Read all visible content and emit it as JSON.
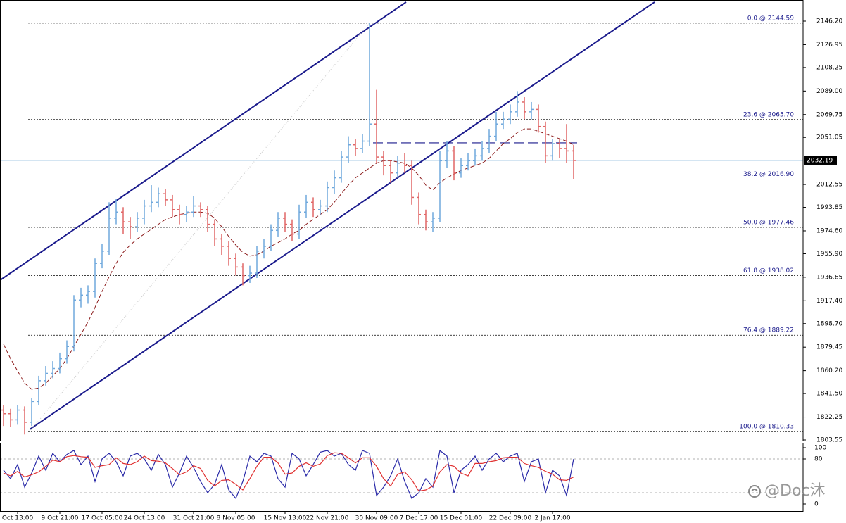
{
  "chart_data": [
    {
      "type": "ohlc",
      "categories": [
        null,
        null,
        "Oct 13:00",
        null,
        null,
        null,
        null,
        null,
        "9 Oct 21:00",
        null,
        null,
        null,
        null,
        null,
        "17 Oct 05:00",
        null,
        null,
        null,
        null,
        null,
        "24 Oct 13:00",
        null,
        null,
        null,
        null,
        null,
        null,
        "31 Oct 21:00",
        null,
        null,
        null,
        null,
        null,
        "8 Nov 05:00",
        null,
        null,
        null,
        null,
        null,
        null,
        "15 Nov 13:00",
        null,
        null,
        null,
        null,
        null,
        "22 Nov 21:00",
        null,
        null,
        null,
        null,
        null,
        null,
        "30 Nov 09:00",
        null,
        null,
        null,
        null,
        null,
        "7 Dec 17:00",
        null,
        null,
        null,
        null,
        null,
        "15 Dec 01:00",
        null,
        null,
        null,
        null,
        null,
        null,
        "22 Dec 09:00",
        null,
        null,
        null,
        null,
        null,
        "2 Jan 17:00",
        null,
        null,
        null
      ],
      "open": [
        1828,
        1825,
        1820,
        1828,
        1818,
        1835,
        1852,
        1858,
        1862,
        1870,
        1880,
        1918,
        1922,
        1925,
        1948,
        1958,
        1985,
        1990,
        1982,
        1978,
        1985,
        1995,
        1998,
        2005,
        2000,
        1992,
        1988,
        1990,
        1995,
        1992,
        1980,
        1968,
        1962,
        1952,
        1945,
        1938,
        1940,
        1958,
        1962,
        1975,
        1985,
        1980,
        1972,
        1990,
        1998,
        1992,
        1995,
        2010,
        2018,
        2035,
        2045,
        2042,
        2048,
        2062,
        2035,
        2028,
        2022,
        2030,
        2028,
        2002,
        1988,
        1982,
        1985,
        2032,
        2040,
        2022,
        2028,
        2032,
        2036,
        2042,
        2052,
        2062,
        2066,
        2072,
        2080,
        2072,
        2074,
        2060,
        2036,
        2046,
        2042,
        2040
      ],
      "high": [
        1832,
        1829,
        1832,
        1831,
        1838,
        1856,
        1864,
        1868,
        1875,
        1885,
        1922,
        1928,
        1930,
        1952,
        1964,
        1998,
        2001,
        1994,
        1986,
        1990,
        2000,
        2012,
        2010,
        2009,
        2004,
        1996,
        1995,
        2003,
        1998,
        1995,
        1984,
        1972,
        1966,
        1956,
        1948,
        1946,
        1962,
        1968,
        1980,
        1990,
        1990,
        1984,
        1996,
        2004,
        2002,
        2000,
        2015,
        2024,
        2040,
        2052,
        2050,
        2054,
        2144.59,
        2090,
        2040,
        2032,
        2036,
        2038,
        2032,
        2006,
        1992,
        1990,
        2040,
        2048,
        2044,
        2034,
        2038,
        2042,
        2048,
        2058,
        2072,
        2072,
        2078,
        2089,
        2084,
        2080,
        2078,
        2064,
        2050,
        2050,
        2062,
        2045
      ],
      "low": [
        1815,
        1814,
        1816,
        1808,
        1815,
        1832,
        1848,
        1854,
        1858,
        1866,
        1876,
        1912,
        1915,
        1920,
        1944,
        1955,
        1980,
        1972,
        1968,
        1974,
        1980,
        1990,
        1994,
        1995,
        1986,
        1980,
        1982,
        1986,
        1986,
        1974,
        1962,
        1955,
        1946,
        1938,
        1930,
        1932,
        1936,
        1952,
        1958,
        1970,
        1974,
        1966,
        1968,
        1985,
        1986,
        1988,
        1990,
        2005,
        2014,
        2030,
        2036,
        2038,
        2044,
        2030,
        2020,
        2014,
        2018,
        2022,
        1996,
        1980,
        1975,
        1974,
        1982,
        2026,
        2016,
        2018,
        2024,
        2028,
        2032,
        2038,
        2048,
        2058,
        2062,
        2068,
        2066,
        2066,
        2055,
        2030,
        2032,
        2034,
        2030,
        2017
      ],
      "close": [
        1825,
        1820,
        1828,
        1818,
        1835,
        1852,
        1858,
        1862,
        1870,
        1880,
        1918,
        1922,
        1925,
        1948,
        1958,
        1985,
        1990,
        1982,
        1978,
        1985,
        1995,
        1998,
        2005,
        2000,
        1992,
        1988,
        1990,
        1995,
        1992,
        1980,
        1968,
        1962,
        1952,
        1945,
        1938,
        1940,
        1958,
        1962,
        1975,
        1985,
        1980,
        1972,
        1990,
        1998,
        1992,
        1995,
        2010,
        2018,
        2035,
        2045,
        2042,
        2048,
        2062,
        2035,
        2028,
        2022,
        2030,
        2028,
        2002,
        1988,
        1982,
        1985,
        2032,
        2040,
        2022,
        2028,
        2032,
        2036,
        2042,
        2052,
        2062,
        2066,
        2072,
        2080,
        2072,
        2074,
        2060,
        2036,
        2046,
        2042,
        2040,
        2032.19
      ],
      "up_color": "#6fa8dc",
      "down_color": "#e06666",
      "ma": {
        "color": "#8b1a1a",
        "values": [
          1882,
          1870,
          1860,
          1850,
          1845,
          1846,
          1850,
          1856,
          1862,
          1870,
          1880,
          1890,
          1900,
          1912,
          1925,
          1937,
          1948,
          1957,
          1963,
          1968,
          1972,
          1976,
          1980,
          1984,
          1986,
          1988,
          1989,
          1990,
          1990,
          1989,
          1985,
          1978,
          1970,
          1963,
          1957,
          1954,
          1955,
          1958,
          1962,
          1965,
          1968,
          1972,
          1975,
          1980,
          1984,
          1988,
          1992,
          1998,
          2005,
          2012,
          2018,
          2022,
          2026,
          2030,
          2032,
          2032,
          2031,
          2030,
          2026,
          2020,
          2012,
          2008,
          2014,
          2018,
          2021,
          2024,
          2026,
          2028,
          2030,
          2034,
          2040,
          2046,
          2050,
          2055,
          2058,
          2058,
          2056,
          2054,
          2052,
          2050,
          2048,
          2045
        ]
      },
      "trendlines": [
        {
          "x": [
            -0.5,
            57.2
          ],
          "y": [
            1934.2,
            2161.8
          ],
          "color": "#1a1a8c",
          "style": "solid"
        },
        {
          "x": [
            3.7,
            92.5
          ],
          "y": [
            1812.1,
            2161.8
          ],
          "color": "#1a1a8c",
          "style": "solid"
        },
        {
          "x": [
            52.5,
            81.5
          ],
          "y": [
            2046.6,
            2046.6
          ],
          "color": "#1a1a8c",
          "style": "dashed"
        },
        {
          "x": [
            3.7,
            52
          ],
          "y": [
            1810.33,
            2144.59
          ],
          "color": "#d0d0d0",
          "style": "dotted"
        }
      ],
      "fib_levels": [
        {
          "value": 2144.59,
          "label": "0.0 @ 2144.59"
        },
        {
          "value": 2065.7,
          "label": "23.6 @ 2065.70"
        },
        {
          "value": 2016.9,
          "label": "38.2 @ 2016.90"
        },
        {
          "value": 1977.46,
          "label": "50.0 @ 1977.46"
        },
        {
          "value": 1938.02,
          "label": "61.8 @ 1938.02"
        },
        {
          "value": 1889.22,
          "label": "76.4 @ 1889.22"
        },
        {
          "value": 1810.33,
          "label": "100.0 @ 1810.33"
        }
      ],
      "last_price": 2032.19,
      "ylim": [
        1802.97,
        2163.48
      ],
      "yticks": [
        {
          "value": 2146.2,
          "label": "2146.20"
        },
        {
          "value": 2126.95,
          "label": "2126.95"
        },
        {
          "value": 2108.25,
          "label": "2108.25"
        },
        {
          "value": 2089,
          "label": "2089.00"
        },
        {
          "value": 2069.75,
          "label": "2069.75"
        },
        {
          "value": 2051.05,
          "label": "2051.05"
        },
        {
          "value": 2012.55,
          "label": "2012.55"
        },
        {
          "value": 1993.85,
          "label": "1993.85"
        },
        {
          "value": 1974.6,
          "label": "1974.60"
        },
        {
          "value": 1955.9,
          "label": "1955.90"
        },
        {
          "value": 1936.65,
          "label": "1936.65"
        },
        {
          "value": 1917.4,
          "label": "1917.40"
        },
        {
          "value": 1898.7,
          "label": "1898.70"
        },
        {
          "value": 1879.45,
          "label": "1879.45"
        },
        {
          "value": 1860.2,
          "label": "1860.20"
        },
        {
          "value": 1841.5,
          "label": "1841.50"
        },
        {
          "value": 1822.25,
          "label": "1822.25"
        },
        {
          "value": 1803.55,
          "label": "1803.55"
        }
      ],
      "watermark": "@Doc沐"
    },
    {
      "type": "line",
      "series": [
        {
          "color": "#2a2aa8",
          "values": [
            60,
            45,
            70,
            30,
            55,
            85,
            60,
            90,
            75,
            88,
            95,
            70,
            85,
            40,
            80,
            90,
            75,
            50,
            85,
            90,
            80,
            60,
            88,
            70,
            30,
            55,
            85,
            65,
            40,
            20,
            35,
            70,
            25,
            10,
            40,
            85,
            75,
            90,
            85,
            45,
            30,
            90,
            80,
            50,
            70,
            92,
            95,
            85,
            90,
            70,
            60,
            95,
            90,
            15,
            30,
            50,
            80,
            40,
            10,
            20,
            45,
            30,
            95,
            85,
            20,
            60,
            70,
            85,
            60,
            80,
            90,
            75,
            85,
            90,
            40,
            75,
            80,
            20,
            60,
            50,
            15,
            80
          ]
        },
        {
          "color": "#e03030",
          "values": [
            55,
            50,
            58,
            48,
            52,
            57,
            67,
            78,
            75,
            84,
            86,
            84,
            83,
            65,
            68,
            70,
            82,
            72,
            70,
            75,
            85,
            77,
            76,
            73,
            63,
            52,
            57,
            68,
            63,
            42,
            32,
            42,
            43,
            35,
            25,
            45,
            67,
            83,
            83,
            73,
            53,
            55,
            67,
            73,
            67,
            71,
            86,
            91,
            90,
            82,
            73,
            82,
            82,
            67,
            45,
            32,
            53,
            57,
            43,
            23,
            25,
            32,
            57,
            70,
            67,
            55,
            50,
            72,
            72,
            75,
            77,
            82,
            83,
            83,
            72,
            68,
            65,
            58,
            53,
            43,
            42,
            48
          ]
        }
      ],
      "levels": [
        20,
        80
      ],
      "ylim": [
        -12.5,
        108.75
      ],
      "yticks": [
        0,
        80,
        100
      ]
    }
  ]
}
